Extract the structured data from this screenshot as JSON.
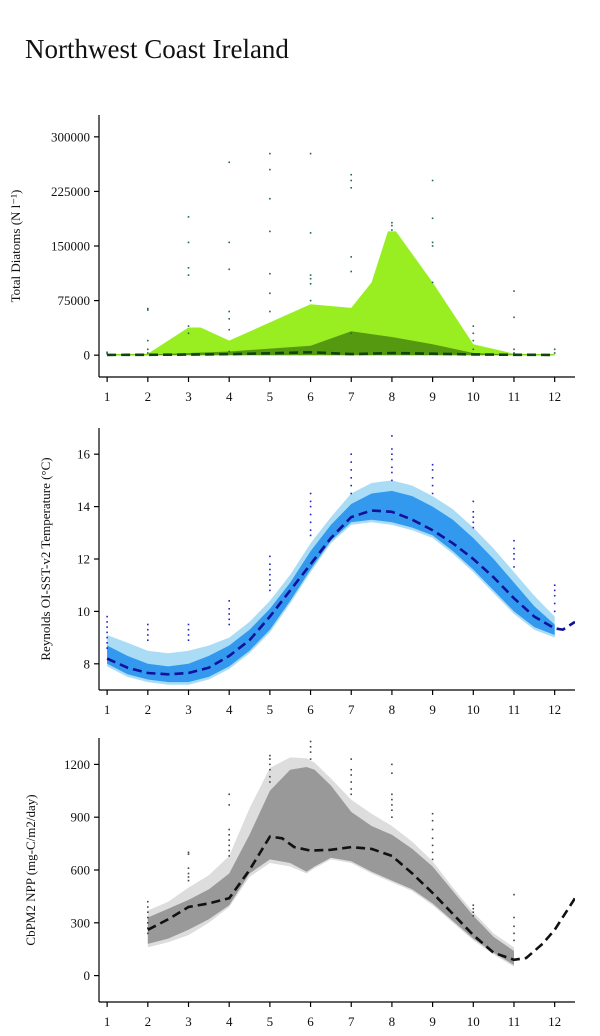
{
  "page": {
    "title": "Northwest Coast Ireland"
  },
  "chart_data": [
    {
      "type": "area",
      "ylabel": "Total Diatoms (N l⁻¹)",
      "ylim": [
        -30000,
        330000
      ],
      "yticks": [
        0,
        75000,
        150000,
        225000,
        300000
      ],
      "xlim": [
        0.8,
        12.5
      ],
      "xticks": [
        1,
        2,
        3,
        4,
        5,
        6,
        7,
        8,
        9,
        10,
        11,
        12
      ],
      "colors": {
        "outer": "#99ee22",
        "inner": "#559911",
        "line": "#114411",
        "dots": "#226655"
      },
      "outer_band": {
        "x": [
          1,
          2,
          3,
          3.3,
          4,
          5,
          6,
          7,
          7.5,
          7.9,
          8.1,
          9,
          10,
          11,
          12
        ],
        "upper": [
          1500,
          2000,
          38000,
          38000,
          20000,
          45000,
          70000,
          65000,
          100000,
          170000,
          170000,
          100000,
          15000,
          2000,
          1500
        ],
        "lower": [
          0,
          0,
          0,
          0,
          0,
          0,
          0,
          0,
          0,
          0,
          0,
          0,
          0,
          0,
          0
        ]
      },
      "inner_band": {
        "x": [
          1,
          2,
          3,
          4,
          5,
          6,
          7,
          8,
          9,
          10,
          11,
          12
        ],
        "upper": [
          500,
          800,
          3000,
          5000,
          9000,
          13000,
          33000,
          25000,
          15000,
          3000,
          800,
          500
        ],
        "lower": [
          0,
          0,
          0,
          0,
          0,
          0,
          0,
          0,
          0,
          0,
          0,
          0
        ]
      },
      "median_line": {
        "x": [
          1,
          2,
          3,
          4,
          5,
          6,
          7,
          8,
          9,
          10,
          11,
          12
        ],
        "y": [
          300,
          500,
          800,
          1500,
          2500,
          4000,
          1500,
          3000,
          2000,
          1000,
          500,
          300
        ]
      },
      "observations": [
        [
          1,
          2000
        ],
        [
          1,
          4000
        ],
        [
          2,
          62000
        ],
        [
          2,
          64000
        ],
        [
          2,
          20000
        ],
        [
          2,
          8000
        ],
        [
          2,
          3000
        ],
        [
          3,
          190000
        ],
        [
          3,
          155000
        ],
        [
          3,
          120000
        ],
        [
          3,
          110000
        ],
        [
          3,
          40000
        ],
        [
          3,
          30000
        ],
        [
          4,
          265000
        ],
        [
          4,
          155000
        ],
        [
          4,
          118000
        ],
        [
          4,
          60000
        ],
        [
          4,
          50000
        ],
        [
          4,
          35000
        ],
        [
          4,
          5000
        ],
        [
          5,
          277000
        ],
        [
          5,
          255000
        ],
        [
          5,
          215000
        ],
        [
          5,
          170000
        ],
        [
          5,
          112000
        ],
        [
          5,
          85000
        ],
        [
          5,
          60000
        ],
        [
          6,
          277000
        ],
        [
          6,
          168000
        ],
        [
          6,
          110000
        ],
        [
          6,
          105000
        ],
        [
          6,
          98000
        ],
        [
          6,
          75000
        ],
        [
          7,
          248000
        ],
        [
          7,
          240000
        ],
        [
          7,
          230000
        ],
        [
          7,
          135000
        ],
        [
          7,
          115000
        ],
        [
          7,
          30000
        ],
        [
          8,
          182000
        ],
        [
          8,
          178000
        ],
        [
          8,
          172000
        ],
        [
          9,
          240000
        ],
        [
          9,
          188000
        ],
        [
          9,
          155000
        ],
        [
          9,
          150000
        ],
        [
          9,
          100000
        ],
        [
          10,
          40000
        ],
        [
          10,
          30000
        ],
        [
          10,
          20000
        ],
        [
          10,
          8000
        ],
        [
          11,
          88000
        ],
        [
          11,
          52000
        ],
        [
          11,
          8000
        ],
        [
          11,
          3000
        ],
        [
          12,
          8000
        ],
        [
          12,
          3000
        ]
      ]
    },
    {
      "type": "area",
      "ylabel": "Reynolds OI-SST-v2 Temperature (°C)",
      "ylim": [
        7,
        17
      ],
      "yticks": [
        8,
        10,
        12,
        14,
        16
      ],
      "xlim": [
        0.8,
        12.5
      ],
      "xticks": [
        1,
        2,
        3,
        4,
        5,
        6,
        7,
        8,
        9,
        10,
        11,
        12
      ],
      "colors": {
        "outer": "#aaddf5",
        "inner": "#3399ee",
        "line": "#111199",
        "dots": "#2222cc"
      },
      "outer_band": {
        "x": [
          1,
          1.5,
          2,
          2.5,
          3,
          3.5,
          4,
          4.5,
          5,
          5.5,
          6,
          6.5,
          7,
          7.5,
          8,
          8.5,
          9,
          9.5,
          10,
          10.5,
          11,
          11.5,
          12
        ],
        "upper": [
          9.1,
          8.8,
          8.5,
          8.4,
          8.5,
          8.7,
          9.0,
          9.6,
          10.4,
          11.4,
          12.6,
          13.6,
          14.5,
          14.9,
          15.0,
          14.8,
          14.4,
          13.9,
          13.2,
          12.4,
          11.5,
          10.6,
          9.8
        ],
        "lower": [
          7.9,
          7.5,
          7.3,
          7.2,
          7.2,
          7.4,
          7.8,
          8.4,
          9.2,
          10.3,
          11.5,
          12.6,
          13.3,
          13.4,
          13.3,
          13.1,
          12.8,
          12.2,
          11.5,
          10.7,
          9.9,
          9.3,
          9.0
        ]
      },
      "inner_band": {
        "x": [
          1,
          1.5,
          2,
          2.5,
          3,
          3.5,
          4,
          4.5,
          5,
          5.5,
          6,
          6.5,
          7,
          7.5,
          8,
          8.5,
          9,
          9.5,
          10,
          10.5,
          11,
          11.5,
          12
        ],
        "upper": [
          8.7,
          8.3,
          8.0,
          7.9,
          8.0,
          8.3,
          8.7,
          9.3,
          10.1,
          11.1,
          12.3,
          13.3,
          14.1,
          14.5,
          14.6,
          14.4,
          14.0,
          13.5,
          12.8,
          12.0,
          11.1,
          10.2,
          9.5
        ],
        "lower": [
          8.0,
          7.6,
          7.4,
          7.3,
          7.3,
          7.5,
          7.9,
          8.5,
          9.3,
          10.4,
          11.6,
          12.7,
          13.4,
          13.5,
          13.4,
          13.2,
          12.9,
          12.3,
          11.6,
          10.8,
          10.0,
          9.4,
          9.1
        ]
      },
      "median_line": {
        "x": [
          1,
          1.5,
          2,
          2.5,
          3,
          3.5,
          4,
          4.5,
          5,
          5.5,
          6,
          6.5,
          7,
          7.5,
          8,
          8.5,
          9,
          9.5,
          10,
          10.5,
          11,
          11.5,
          12,
          12.2,
          12.5
        ],
        "y": [
          8.2,
          7.85,
          7.65,
          7.6,
          7.65,
          7.85,
          8.3,
          8.9,
          9.8,
          10.8,
          11.8,
          12.8,
          13.6,
          13.85,
          13.8,
          13.5,
          13.1,
          12.6,
          12.0,
          11.3,
          10.5,
          9.8,
          9.35,
          9.3,
          9.6
        ]
      },
      "observations": [
        [
          1,
          9.8
        ],
        [
          1,
          9.6
        ],
        [
          1,
          9.4
        ],
        [
          1,
          9.2
        ],
        [
          1,
          9.0
        ],
        [
          1,
          8.8
        ],
        [
          1,
          8.6
        ],
        [
          2,
          9.5
        ],
        [
          2,
          9.3
        ],
        [
          2,
          9.1
        ],
        [
          2,
          8.9
        ],
        [
          3,
          9.5
        ],
        [
          3,
          9.3
        ],
        [
          3,
          9.1
        ],
        [
          3,
          8.9
        ],
        [
          4,
          10.4
        ],
        [
          4,
          10.1
        ],
        [
          4,
          9.9
        ],
        [
          4,
          9.7
        ],
        [
          4,
          9.5
        ],
        [
          5,
          12.1
        ],
        [
          5,
          11.8
        ],
        [
          5,
          11.6
        ],
        [
          5,
          11.4
        ],
        [
          5,
          11.2
        ],
        [
          5,
          11.0
        ],
        [
          5,
          10.8
        ],
        [
          6,
          14.5
        ],
        [
          6,
          14.2
        ],
        [
          6,
          14.0
        ],
        [
          6,
          13.7
        ],
        [
          6,
          13.4
        ],
        [
          6,
          13.1
        ],
        [
          6,
          12.9
        ],
        [
          7,
          16.0
        ],
        [
          7,
          15.7
        ],
        [
          7,
          15.4
        ],
        [
          7,
          15.1
        ],
        [
          7,
          14.8
        ],
        [
          7,
          14.5
        ],
        [
          8,
          16.7
        ],
        [
          8,
          16.2
        ],
        [
          8,
          16.0
        ],
        [
          8,
          15.8
        ],
        [
          8,
          15.5
        ],
        [
          8,
          15.3
        ],
        [
          8,
          15.0
        ],
        [
          9,
          15.6
        ],
        [
          9,
          15.4
        ],
        [
          9,
          15.1
        ],
        [
          9,
          14.8
        ],
        [
          9,
          14.5
        ],
        [
          10,
          14.2
        ],
        [
          10,
          13.8
        ],
        [
          10,
          13.6
        ],
        [
          10,
          13.4
        ],
        [
          10,
          13.2
        ],
        [
          11,
          12.7
        ],
        [
          11,
          12.4
        ],
        [
          11,
          12.2
        ],
        [
          11,
          12.0
        ],
        [
          11,
          11.7
        ],
        [
          12,
          11.0
        ],
        [
          12,
          10.8
        ],
        [
          12,
          10.6
        ],
        [
          12,
          10.3
        ],
        [
          12,
          10.0
        ]
      ]
    },
    {
      "type": "area",
      "ylabel": "CbPM2 NPP (mg-C/m2/day)",
      "ylim": [
        -150,
        1350
      ],
      "yticks": [
        0,
        300,
        600,
        900,
        1200
      ],
      "xlim": [
        0.8,
        12.5
      ],
      "xticks": [
        1,
        2,
        3,
        4,
        5,
        6,
        7,
        8,
        9,
        10,
        11,
        12
      ],
      "colors": {
        "outer": "#dddddd",
        "inner": "#999999",
        "line": "#111111",
        "dots": "#444444"
      },
      "outer_band": {
        "x": [
          2,
          2.5,
          3,
          3.5,
          4,
          4.5,
          5,
          5.5,
          5.9,
          6.1,
          6.5,
          7,
          7.5,
          8,
          8.5,
          9,
          9.5,
          10,
          10.5,
          11
        ],
        "upper": [
          370,
          420,
          500,
          570,
          680,
          950,
          1180,
          1240,
          1235,
          1210,
          1120,
          1000,
          920,
          850,
          760,
          650,
          500,
          360,
          240,
          160
        ],
        "lower": [
          160,
          190,
          230,
          300,
          390,
          560,
          640,
          620,
          580,
          610,
          660,
          640,
          580,
          530,
          480,
          400,
          300,
          200,
          120,
          50
        ]
      },
      "inner_band": {
        "x": [
          2,
          2.5,
          3,
          3.5,
          4,
          4.5,
          5,
          5.5,
          5.9,
          6.1,
          6.5,
          7,
          7.5,
          8,
          8.5,
          9,
          9.5,
          10,
          10.5,
          11
        ],
        "upper": [
          330,
          380,
          430,
          490,
          580,
          800,
          1050,
          1170,
          1185,
          1170,
          1080,
          930,
          850,
          800,
          720,
          620,
          480,
          340,
          220,
          140
        ],
        "lower": [
          180,
          210,
          260,
          320,
          400,
          580,
          660,
          640,
          590,
          620,
          670,
          650,
          590,
          540,
          490,
          410,
          310,
          210,
          130,
          60
        ]
      },
      "median_line": {
        "x": [
          2,
          2.5,
          3,
          3.5,
          4,
          4.5,
          5,
          5.3,
          5.6,
          6,
          6.5,
          7,
          7.5,
          8,
          8.5,
          9,
          9.5,
          10,
          10.5,
          11,
          11.3,
          11.7,
          12,
          12.5
        ],
        "y": [
          260,
          320,
          390,
          410,
          440,
          600,
          790,
          780,
          730,
          710,
          715,
          730,
          720,
          680,
          580,
          470,
          350,
          230,
          130,
          90,
          100,
          180,
          260,
          440
        ]
      },
      "observations": [
        [
          2,
          420
        ],
        [
          2,
          390
        ],
        [
          2,
          360
        ],
        [
          2,
          330
        ],
        [
          2,
          300
        ],
        [
          2,
          270
        ],
        [
          2,
          240
        ],
        [
          3,
          700
        ],
        [
          3,
          690
        ],
        [
          3,
          610
        ],
        [
          3,
          580
        ],
        [
          3,
          560
        ],
        [
          3,
          540
        ],
        [
          4,
          1030
        ],
        [
          4,
          970
        ],
        [
          4,
          830
        ],
        [
          4,
          800
        ],
        [
          4,
          770
        ],
        [
          4,
          740
        ],
        [
          4,
          710
        ],
        [
          4,
          680
        ],
        [
          5,
          1250
        ],
        [
          5,
          1230
        ],
        [
          5,
          1200
        ],
        [
          5,
          1170
        ],
        [
          5,
          1130
        ],
        [
          5,
          1100
        ],
        [
          6,
          1330
        ],
        [
          6,
          1300
        ],
        [
          6,
          1270
        ],
        [
          6,
          1230
        ],
        [
          7,
          1230
        ],
        [
          7,
          1170
        ],
        [
          7,
          1140
        ],
        [
          7,
          1100
        ],
        [
          7,
          1060
        ],
        [
          7,
          1030
        ],
        [
          8,
          1200
        ],
        [
          8,
          1150
        ],
        [
          8,
          1030
        ],
        [
          8,
          1000
        ],
        [
          8,
          970
        ],
        [
          8,
          940
        ],
        [
          8,
          900
        ],
        [
          9,
          920
        ],
        [
          9,
          880
        ],
        [
          9,
          830
        ],
        [
          9,
          780
        ],
        [
          9,
          740
        ],
        [
          9,
          700
        ],
        [
          9,
          660
        ],
        [
          10,
          400
        ],
        [
          10,
          380
        ],
        [
          10,
          360
        ],
        [
          10,
          340
        ],
        [
          11,
          460
        ],
        [
          11,
          330
        ],
        [
          11,
          280
        ],
        [
          11,
          240
        ],
        [
          11,
          200
        ]
      ]
    }
  ]
}
